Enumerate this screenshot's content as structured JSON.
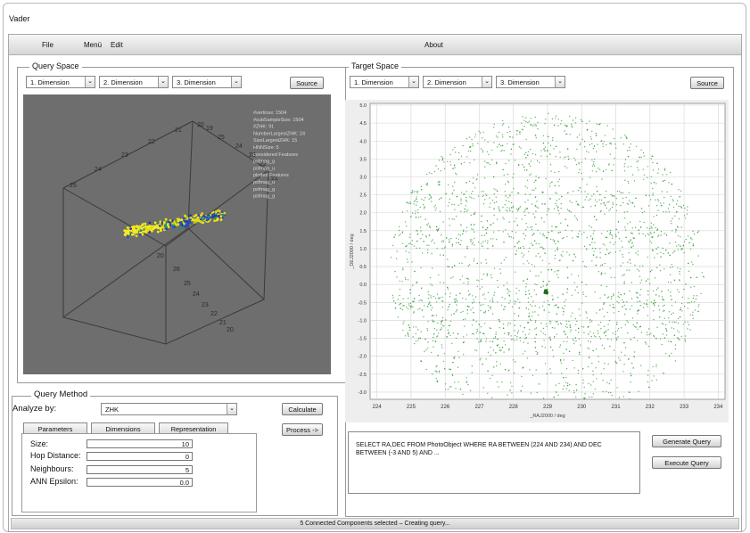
{
  "app": {
    "title": "Vader"
  },
  "menu": {
    "file": "File",
    "menu": "Menü",
    "edit": "Edit",
    "about": "About"
  },
  "query_space": {
    "legend": "Query Space",
    "dim1": "1. Dimension",
    "dim2": "2. Dimension",
    "dim3": "3. Dimension",
    "source": "Source",
    "overlay": [
      "#vertices: 1504",
      "#subSampleSize: 1504",
      "#ZHK: 91",
      "NumberLargestZHK: 24",
      "SizeLargestZHK: 15",
      "HNNSize: 5",
      "considered Features",
      "psfmag_g",
      "psfmag_u",
      "plotted Features",
      "psfmag_u",
      "psfmag_g",
      "psfmag_g"
    ],
    "axis_numbers": [
      "25",
      "24",
      "23",
      "22",
      "21",
      "20",
      "19",
      "25",
      "24",
      "23",
      "22",
      "21",
      "20",
      "26",
      "25",
      "24",
      "23",
      "22",
      "21",
      "20"
    ]
  },
  "target_space": {
    "legend": "Target Space",
    "dim1": "1. Dimension",
    "dim2": "2. Dimension",
    "dim3": "3. Dimension",
    "source": "Source"
  },
  "query_method": {
    "legend": "Query Method",
    "analyze_label": "Analyze by:",
    "analyze_value": "ZHK",
    "calculate": "Calculate",
    "process": "Process ->",
    "tabs": [
      "Parameters",
      "Dimensions",
      "Representation"
    ],
    "params": [
      {
        "label": "Size:",
        "value": "10"
      },
      {
        "label": "Hop Distance:",
        "value": "0"
      },
      {
        "label": "Neighbours:",
        "value": "5"
      },
      {
        "label": "ANN Epsilon:",
        "value": "0.0"
      }
    ]
  },
  "sql": {
    "text": "SELECT RA,DEC FROM PhotoObject WHERE RA BETWEEN (224 AND 234) AND DEC BETWEEN (-3 AND 5) AND ...",
    "generate": "Generate Query",
    "execute": "Execute Query"
  },
  "status": {
    "text": "5 Connected Components selected – Creating query..."
  },
  "chart_data": {
    "type": "scatter",
    "xlabel": "_RAJ2000 / deg",
    "ylabel": "_DEJ2000 / deg",
    "xlim": [
      223.8,
      234.2
    ],
    "ylim": [
      -3.2,
      5.05
    ],
    "x_ticks": [
      "224",
      "225",
      "226",
      "227",
      "228",
      "229",
      "230",
      "231",
      "232",
      "233",
      "234"
    ],
    "y_ticks": [
      "5.0",
      "4.5",
      "4.0",
      "3.5",
      "3.0",
      "2.5",
      "2.0",
      "1.5",
      "1.0",
      "0.5",
      "0.0",
      "-0.5",
      "-1.0",
      "-1.5",
      "-2.0",
      "-2.5",
      "-3.0"
    ],
    "grid": true,
    "color": "#2e9a2e",
    "footprint": {
      "center_x": 229,
      "center_y": 0.4,
      "radius_deg": 4.6
    },
    "dense_bands_y": [
      2.3,
      1.3,
      -0.5,
      -1.3
    ],
    "cluster": {
      "x": 228.95,
      "y": -0.2
    }
  }
}
